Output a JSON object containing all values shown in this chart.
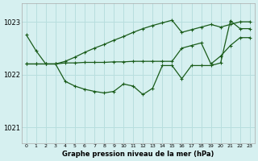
{
  "title": "Graphe pression niveau de la mer (hPa)",
  "bg_color": "#d6f0f0",
  "grid_color": "#b8dede",
  "line_color": "#1a5c1a",
  "xlim": [
    -0.5,
    23.5
  ],
  "ylim": [
    1020.7,
    1023.35
  ],
  "yticks": [
    1021,
    1022,
    1023
  ],
  "xticks": [
    0,
    1,
    2,
    3,
    4,
    5,
    6,
    7,
    8,
    9,
    10,
    11,
    12,
    13,
    14,
    15,
    16,
    17,
    18,
    19,
    20,
    21,
    22,
    23
  ],
  "hours": [
    0,
    1,
    2,
    3,
    4,
    5,
    6,
    7,
    8,
    9,
    10,
    11,
    12,
    13,
    14,
    15,
    16,
    17,
    18,
    19,
    20,
    21,
    22,
    23
  ],
  "main_values": [
    1022.75,
    1022.45,
    1022.2,
    1022.2,
    1021.87,
    1021.78,
    1021.72,
    1021.68,
    1021.65,
    1021.68,
    1021.82,
    1021.78,
    1021.62,
    1021.74,
    1022.17,
    1022.17,
    1021.92,
    1022.17,
    1022.17,
    1022.17,
    1022.22,
    1023.02,
    1022.87,
    1022.87
  ],
  "upper_line": [
    1022.2,
    1022.2,
    1022.2,
    1022.2,
    1022.25,
    1022.33,
    1022.42,
    1022.5,
    1022.57,
    1022.65,
    1022.72,
    1022.8,
    1022.87,
    1022.93,
    1022.98,
    1023.03,
    1022.8,
    1022.85,
    1022.9,
    1022.95,
    1022.9,
    1022.95,
    1023.0,
    1023.0
  ],
  "lower_line": [
    1022.2,
    1022.2,
    1022.2,
    1022.2,
    1022.22,
    1022.22,
    1022.23,
    1022.23,
    1022.23,
    1022.24,
    1022.24,
    1022.25,
    1022.25,
    1022.25,
    1022.25,
    1022.25,
    1022.5,
    1022.55,
    1022.6,
    1022.2,
    1022.35,
    1022.55,
    1022.7,
    1022.7
  ]
}
